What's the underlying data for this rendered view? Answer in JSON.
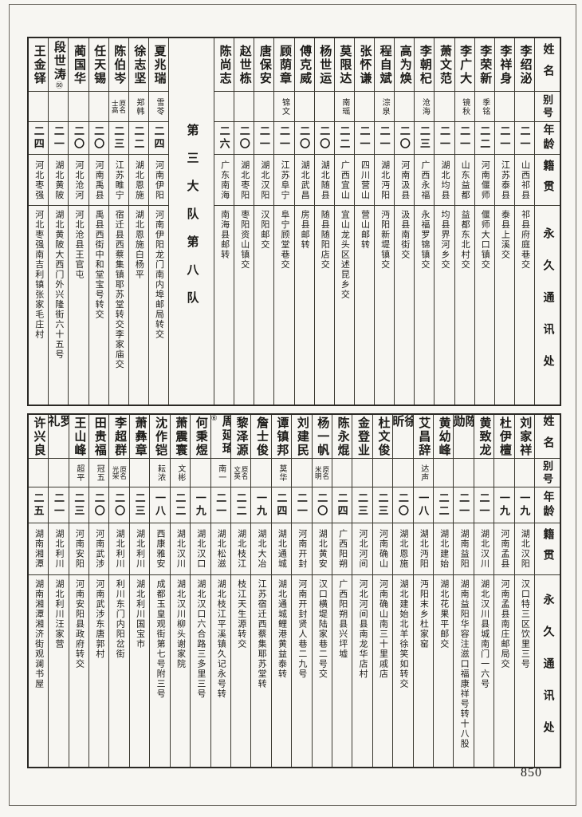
{
  "page": {
    "number": "850"
  },
  "headers": {
    "name": "姓名",
    "alias": "别号",
    "age": "年龄",
    "origin": "籍贯",
    "address": "永久通讯处"
  },
  "top_table": {
    "section_label": "第三大队第八队",
    "entries": [
      {
        "name": "李绍泌",
        "alias": [],
        "age": "二一",
        "origin": "山西祁县",
        "address": "祁县府庭巷交"
      },
      {
        "name": "李祥身",
        "alias": [],
        "age": "二一",
        "origin": "江苏泰县",
        "address": "泰县上溪交"
      },
      {
        "name": "李荣新",
        "alias": [
          "季铭"
        ],
        "age": "二二",
        "origin": "河南偃师",
        "address": "偃师大口镇交"
      },
      {
        "name": "李广大",
        "alias": [
          "镜秋"
        ],
        "age": "二一",
        "origin": "山东益都",
        "address": "益都东北村交"
      },
      {
        "name": "萧文范",
        "alias": [],
        "age": "二一",
        "origin": "湖北均县",
        "address": "均县界河乡交"
      },
      {
        "name": "李朝杞",
        "alias": [
          "沧海"
        ],
        "age": "二三",
        "origin": "广西永福",
        "address": "永福罗锦镇交"
      },
      {
        "name": "高为焕",
        "alias": [],
        "age": "二〇",
        "origin": "河南汲县",
        "address": "汲县南街交"
      },
      {
        "name": "程自斌",
        "alias": [
          "淙泉"
        ],
        "age": "二一",
        "origin": "湖北沔阳",
        "address": "沔阳新堤镇交"
      },
      {
        "name": "张怀谦",
        "alias": [],
        "age": "二一",
        "origin": "四川营山",
        "address": "营山邮转"
      },
      {
        "name": "莫限达",
        "alias": [
          "南瑶"
        ],
        "age": "二二",
        "origin": "广西宜山",
        "address": "宜山龙头区述昆乡交"
      },
      {
        "name": "杨世运",
        "alias": [],
        "age": "二〇",
        "origin": "湖北随县",
        "address": "随县随阳店交"
      },
      {
        "name": "傅克威",
        "alias": [],
        "age": "二〇",
        "origin": "湖北武昌",
        "address": "房县邮转"
      },
      {
        "name": "顾荫章",
        "alias": [
          "锦文"
        ],
        "age": "二一",
        "origin": "江苏阜宁",
        "address": "阜宁顾堂巷交"
      },
      {
        "name": "唐保安",
        "alias": [],
        "age": "二一",
        "origin": "湖北汉阳",
        "address": "汉阳邮交"
      },
      {
        "name": "赵世栋",
        "alias": [],
        "age": "二〇",
        "origin": "湖北枣阳",
        "address": "枣阳资山镇交"
      },
      {
        "name": "陈尚志",
        "alias": [],
        "age": "二六",
        "origin": "广东南海",
        "address": "南海县邮转"
      },
      {
        "section": true
      },
      {
        "name": "夏兆瑞",
        "alias": [
          "雪苓"
        ],
        "age": "二四",
        "origin": "河南伊阳",
        "address": "河南伊阳龙门南内埠邮局转交"
      },
      {
        "name": "徐志坚",
        "alias": [
          "郑韩"
        ],
        "age": "二二",
        "origin": "湖北恩施",
        "address": "湖北恩施白杨平"
      },
      {
        "name": "陈伯岑",
        "alias": [
          "原名",
          "士高"
        ],
        "age": "二三",
        "origin": "江苏睢宁",
        "address": "宿迁县西蔡集镇耶苏堂转交李家庙交"
      },
      {
        "name": "任天锡",
        "alias": [],
        "age": "二〇",
        "origin": "河南禹县",
        "address": "禹县西街中和堂宝号转交"
      },
      {
        "name": "蔺国华",
        "alias": [],
        "age": "二〇",
        "origin": "河北沧河",
        "address": "河北沧县王官屯"
      },
      {
        "name": "段世涛",
        "mark": "㊿",
        "alias": [],
        "age": "二一",
        "origin": "湖北黄陂",
        "address": "湖北黄陂大西门外兴隆街六十五号"
      },
      {
        "name": "王金铎",
        "alias": [],
        "age": "二四",
        "origin": "河北枣强",
        "address": "河北枣强南吉利镇张家毛庄村"
      }
    ]
  },
  "bottom_table": {
    "entries": [
      {
        "name": "刘家祥",
        "alias": [],
        "age": "一九",
        "origin": "湖北汉阳",
        "address": "汉口特三区饮里三号"
      },
      {
        "name": "杜伊檀",
        "alias": [],
        "age": "一九",
        "origin": "河南孟县",
        "address": "河南孟县南庄邮局交"
      },
      {
        "name": "黄致龙",
        "alias": [],
        "age": "二一",
        "origin": "湖北汉川",
        "address": "湖北汉川县城南门一六号"
      },
      {
        "name": "陈勋",
        "alias": [],
        "age": "二一",
        "origin": "湖南益阳",
        "address": "湖南益阳华容注滋口福康祥号转十八股"
      },
      {
        "name": "黄幼峰",
        "alias": [],
        "age": "二二",
        "origin": "湖北建始",
        "address": "湖北花果平邮交"
      },
      {
        "name": "艾昌辞",
        "alias": [
          "达声"
        ],
        "age": "一八",
        "origin": "湖北沔阳",
        "address": "沔阳末乡杜家窑"
      },
      {
        "name": "徐昕",
        "alias": [],
        "age": "二〇",
        "origin": "湖北恩施",
        "address": "湖北建始北羊徐笑如转交"
      },
      {
        "name": "杜文俊",
        "alias": [],
        "age": "二三",
        "origin": "河南确山",
        "address": "河南确山南三十里戚店"
      },
      {
        "name": "金登业",
        "alias": [],
        "age": "二三",
        "origin": "河北河间",
        "address": "河北河间县南龙华店村"
      },
      {
        "name": "陈永焜",
        "alias": [],
        "age": "二四",
        "origin": "广西阳朔",
        "address": "广西阳朔县兴坪墟"
      },
      {
        "name": "杨一帆",
        "alias": [
          "原名",
          "米明"
        ],
        "age": "二〇",
        "origin": "湖北黄安",
        "address": "汉口横堤陆家巷二号交"
      },
      {
        "name": "刘建民",
        "alias": [],
        "age": "二一",
        "origin": "河南开封",
        "address": "河南开封贤人巷二九号"
      },
      {
        "name": "谭镇邦",
        "alias": [
          "莫华"
        ],
        "age": "二四",
        "origin": "湖北通城",
        "address": "湖北通城鲤港黄益泰转"
      },
      {
        "name": "詹士俊",
        "alias": [],
        "age": "一九",
        "origin": "湖北大冶",
        "address": "江苏宿迁西蔡集耶苏堂转"
      },
      {
        "name": "黎泽源",
        "alias": [
          "原名",
          "文英"
        ],
        "age": "二二",
        "origin": "湖北枝江",
        "address": "枝江天生源转交"
      },
      {
        "name": "周延琦",
        "mark": "⑥",
        "alias": [
          "南一"
        ],
        "age": "二一",
        "origin": "湖北松滋",
        "address": "湖北枝江平溪镇久记永号转"
      },
      {
        "name": "何秉煜",
        "alias": [],
        "age": "一九",
        "origin": "湖北汉口",
        "address": "湖北汉口六合路三多里三号"
      },
      {
        "name": "萧震寰",
        "alias": [
          "文彬"
        ],
        "age": "二二",
        "origin": "湖北汉川",
        "address": "湖北汉川柳头谢家院"
      },
      {
        "name": "沈作铠",
        "alias": [
          "耘浓"
        ],
        "age": "一八",
        "origin": "西康雅安",
        "address": "成都玉皇观街第七号附三号"
      },
      {
        "name": "萧彝章",
        "alias": [],
        "age": "二三",
        "origin": "湖北利川",
        "address": "湖北利川国宝市"
      },
      {
        "name": "李超群",
        "alias": [
          "原名",
          "光荣"
        ],
        "age": "二〇",
        "origin": "湖北利川",
        "address": "利川东门内阳岔街"
      },
      {
        "name": "田贵福",
        "alias": [
          "冠五"
        ],
        "age": "二〇",
        "origin": "河南武涉",
        "address": "河南武涉东唐郭村"
      },
      {
        "name": "王山峰",
        "alias": [
          "超平"
        ],
        "age": "二三",
        "origin": "河南安阳",
        "address": "河南安阳县政府转交"
      },
      {
        "name": "罗礼",
        "alias": [],
        "age": "二一",
        "origin": "湖北利川",
        "address": "湖北利川汪家营"
      },
      {
        "name": "许兴良",
        "alias": [],
        "age": "二五",
        "origin": "湖南湘潭",
        "address": "湖南湘潭湘济街观澜书屋"
      }
    ]
  }
}
